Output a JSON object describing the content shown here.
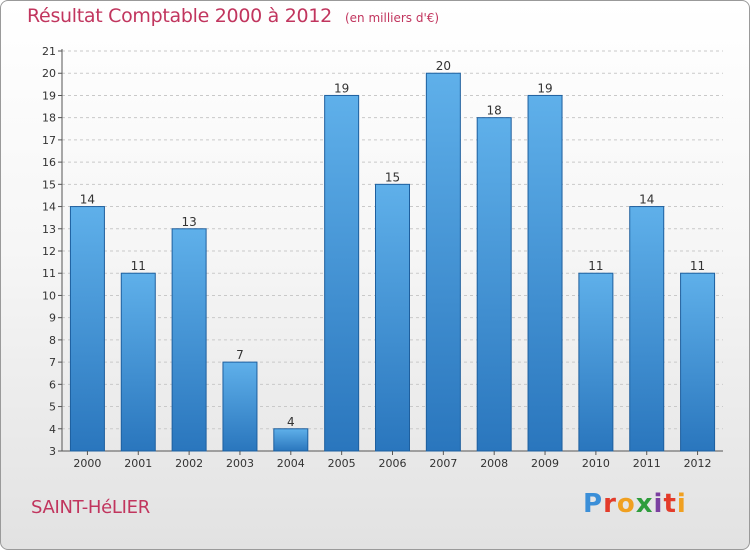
{
  "chart_data": {
    "type": "bar",
    "title": "Résultat Comptable 2000 à 2012",
    "subtitle": "(en milliers d'€)",
    "categories": [
      "2000",
      "2001",
      "2002",
      "2003",
      "2004",
      "2005",
      "2006",
      "2007",
      "2008",
      "2009",
      "2010",
      "2011",
      "2012"
    ],
    "values": [
      14,
      11,
      13,
      7,
      4,
      19,
      15,
      20,
      18,
      19,
      11,
      14,
      11
    ],
    "ylim": [
      3,
      21
    ],
    "yticks": [
      3,
      4,
      5,
      6,
      7,
      8,
      9,
      10,
      11,
      12,
      13,
      14,
      15,
      16,
      17,
      18,
      19,
      20,
      21
    ],
    "grid": true,
    "xlabel": "",
    "ylabel": "",
    "bar_color": "#3d8ed6"
  },
  "footer": {
    "town": "SAINT-HéLIER",
    "brand_letters": [
      "P",
      "r",
      "o",
      "x",
      "i",
      "t",
      "i"
    ],
    "brand_colors": [
      "#3b8fd8",
      "#e33b2a",
      "#f0a020",
      "#2e9d3c",
      "#7b3fa0",
      "#e33b2a",
      "#f0a020"
    ]
  }
}
